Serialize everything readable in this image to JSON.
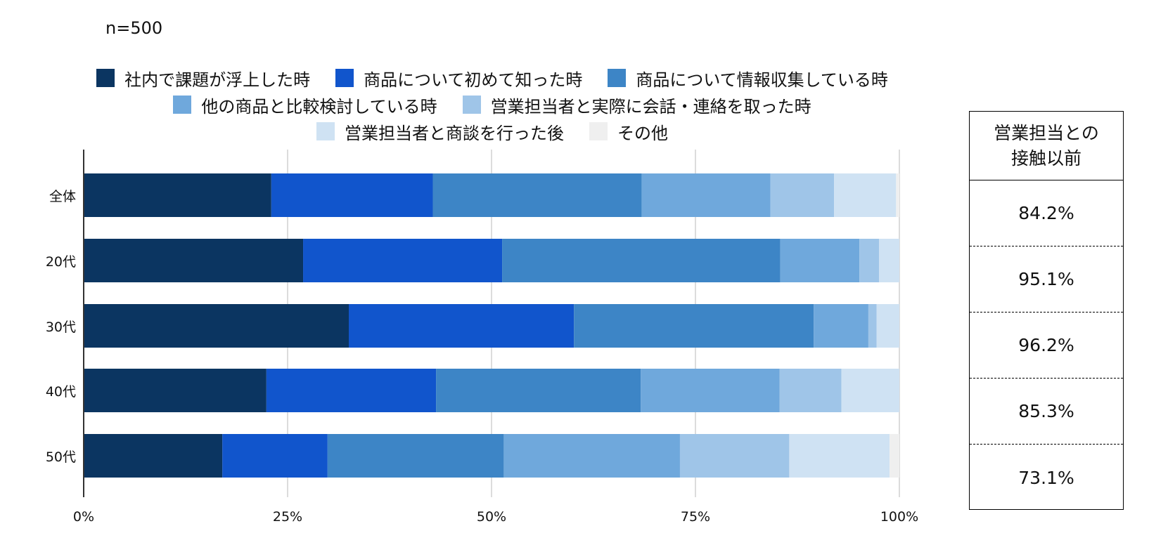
{
  "n_label": "n=500",
  "chart_data": {
    "type": "bar",
    "orientation": "horizontal",
    "stacked": true,
    "categories": [
      "全体",
      "20代",
      "30代",
      "40代",
      "50代"
    ],
    "series": [
      {
        "name": "社内で課題が浮上した時",
        "color": "#0B3561",
        "values": [
          23.0,
          26.9,
          32.5,
          22.4,
          17.0
        ]
      },
      {
        "name": "商品について初めて知った時",
        "color": "#1155CC",
        "values": [
          19.8,
          24.4,
          27.6,
          20.8,
          12.9
        ]
      },
      {
        "name": "商品について情報収集している時",
        "color": "#3D85C6",
        "values": [
          25.6,
          34.1,
          29.4,
          25.1,
          21.6
        ]
      },
      {
        "name": "他の商品と比較検討している時",
        "color": "#6FA8DC",
        "values": [
          15.8,
          9.7,
          6.7,
          17.0,
          21.6
        ]
      },
      {
        "name": "営業担当者と実際に会話・連絡を取った時",
        "color": "#9FC5E8",
        "values": [
          7.8,
          2.4,
          1.0,
          7.6,
          13.4
        ]
      },
      {
        "name": "営業担当者と商談を行った後",
        "color": "#CFE2F3",
        "values": [
          7.6,
          2.5,
          2.8,
          7.1,
          12.3
        ]
      },
      {
        "name": "その他",
        "color": "#EFEFEF",
        "values": [
          0.4,
          0.0,
          0.0,
          0.0,
          1.2
        ]
      }
    ],
    "xlim": [
      0,
      100
    ],
    "xticks": [
      "0%",
      "25%",
      "50%",
      "75%",
      "100%"
    ],
    "grid": true,
    "legend_position": "top"
  },
  "summary": {
    "header": [
      "営業担当との",
      "接触以前"
    ],
    "values": [
      "84.2%",
      "95.1%",
      "96.2%",
      "85.3%",
      "73.1%"
    ]
  }
}
